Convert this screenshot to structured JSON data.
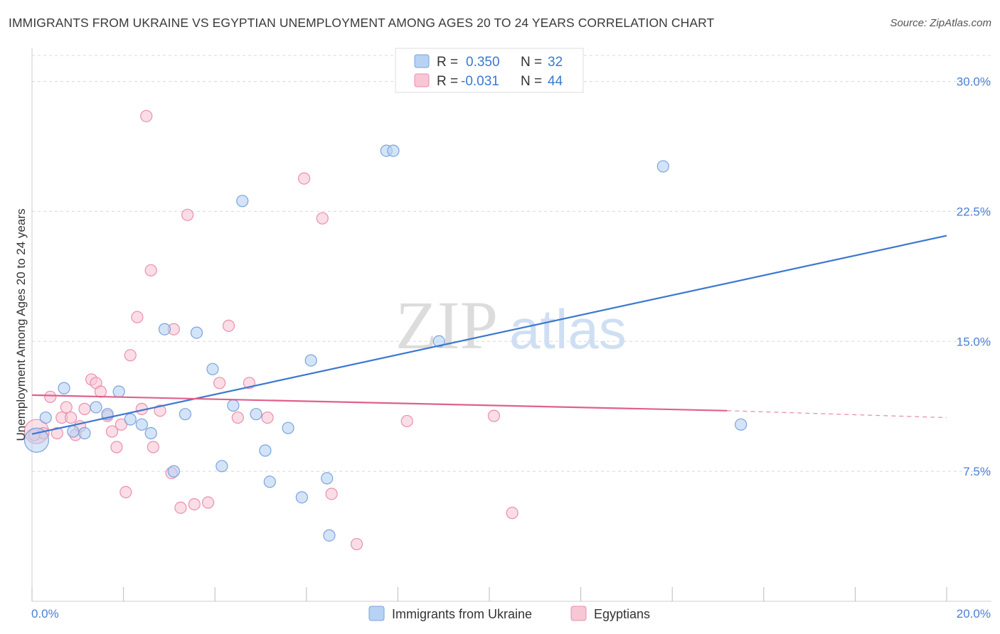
{
  "header": {
    "title": "IMMIGRANTS FROM UKRAINE VS EGYPTIAN UNEMPLOYMENT AMONG AGES 20 TO 24 YEARS CORRELATION CHART",
    "source": "Source: ZipAtlas.com"
  },
  "watermark": {
    "zip": "ZIP",
    "atlas": "atlas"
  },
  "legend_top": {
    "rows": [
      {
        "r_label": "R =",
        "r_value": "0.350",
        "n_label": "N =",
        "n_value": "32"
      },
      {
        "r_label": "R =",
        "r_value": "-0.031",
        "n_label": "N =",
        "n_value": "44"
      }
    ]
  },
  "legend_bottom": {
    "items": [
      {
        "label": "Immigrants from Ukraine"
      },
      {
        "label": "Egyptians"
      }
    ]
  },
  "colors": {
    "blue_fill": "#b8d2f3",
    "blue_stroke": "#7aa3dd",
    "blue_line": "#3b78d0",
    "pink_fill": "#f8c7d6",
    "pink_stroke": "#e98fab",
    "pink_line": "#e0608c",
    "grid": "#d8d8d8",
    "tick_label": "#4a7fd4"
  },
  "chart_data": {
    "type": "scatter",
    "ylabel": "Unemployment Among Ages 20 to 24 years",
    "xlim": [
      0,
      20
    ],
    "ylim": [
      0,
      31.5
    ],
    "x_tick_labels": [
      "0.0%",
      "20.0%"
    ],
    "y_ticks": [
      {
        "value": 7.5,
        "label": "7.5%"
      },
      {
        "value": 15.0,
        "label": "15.0%"
      },
      {
        "value": 22.5,
        "label": "22.5%"
      },
      {
        "value": 30.0,
        "label": "30.0%"
      }
    ],
    "grid": true,
    "series": [
      {
        "name": "Immigrants from Ukraine",
        "color": "blue",
        "points": [
          [
            0.1,
            9.3
          ],
          [
            0.3,
            10.6
          ],
          [
            0.7,
            12.3
          ],
          [
            0.9,
            9.8
          ],
          [
            1.15,
            9.7
          ],
          [
            1.4,
            11.2
          ],
          [
            1.65,
            10.8
          ],
          [
            1.9,
            12.1
          ],
          [
            2.15,
            10.5
          ],
          [
            2.4,
            10.2
          ],
          [
            2.6,
            9.7
          ],
          [
            2.9,
            15.7
          ],
          [
            3.1,
            7.5
          ],
          [
            3.35,
            10.8
          ],
          [
            3.6,
            15.5
          ],
          [
            3.95,
            13.4
          ],
          [
            4.15,
            7.8
          ],
          [
            4.4,
            11.3
          ],
          [
            4.6,
            23.1
          ],
          [
            4.9,
            10.8
          ],
          [
            5.1,
            8.7
          ],
          [
            5.2,
            6.9
          ],
          [
            5.6,
            10.0
          ],
          [
            5.9,
            6.0
          ],
          [
            6.1,
            13.9
          ],
          [
            6.45,
            7.1
          ],
          [
            6.5,
            3.8
          ],
          [
            7.75,
            26.0
          ],
          [
            7.9,
            26.0
          ],
          [
            8.9,
            15.0
          ],
          [
            13.8,
            25.1
          ],
          [
            15.5,
            10.2
          ]
        ],
        "trend": {
          "x": [
            0.0,
            20.0
          ],
          "y": [
            9.65,
            21.1
          ]
        }
      },
      {
        "name": "Egyptians",
        "color": "pink",
        "points": [
          [
            0.1,
            9.8
          ],
          [
            0.25,
            9.7
          ],
          [
            0.4,
            11.8
          ],
          [
            0.55,
            9.7
          ],
          [
            0.65,
            10.6
          ],
          [
            0.75,
            11.2
          ],
          [
            0.85,
            10.6
          ],
          [
            0.95,
            9.6
          ],
          [
            1.05,
            10.1
          ],
          [
            1.15,
            11.1
          ],
          [
            1.3,
            12.8
          ],
          [
            1.4,
            12.6
          ],
          [
            1.5,
            12.1
          ],
          [
            1.65,
            10.7
          ],
          [
            1.75,
            9.8
          ],
          [
            1.85,
            8.9
          ],
          [
            1.95,
            10.2
          ],
          [
            2.05,
            6.3
          ],
          [
            2.15,
            14.2
          ],
          [
            2.3,
            16.4
          ],
          [
            2.4,
            11.1
          ],
          [
            2.5,
            28.0
          ],
          [
            2.6,
            19.1
          ],
          [
            2.65,
            8.9
          ],
          [
            2.8,
            11.0
          ],
          [
            3.05,
            7.4
          ],
          [
            3.1,
            15.7
          ],
          [
            3.25,
            5.4
          ],
          [
            3.4,
            22.3
          ],
          [
            3.55,
            5.6
          ],
          [
            3.85,
            5.7
          ],
          [
            4.1,
            12.6
          ],
          [
            4.3,
            15.9
          ],
          [
            4.5,
            10.6
          ],
          [
            4.75,
            12.6
          ],
          [
            5.15,
            10.6
          ],
          [
            5.95,
            24.4
          ],
          [
            6.35,
            22.1
          ],
          [
            6.55,
            6.2
          ],
          [
            7.1,
            3.3
          ],
          [
            8.2,
            10.4
          ],
          [
            10.1,
            10.7
          ],
          [
            10.5,
            5.1
          ],
          [
            0.05,
            9.6
          ]
        ],
        "trend": {
          "x": [
            0.0,
            15.2
          ],
          "y": [
            11.9,
            11.0
          ]
        },
        "trend_dashed": {
          "x": [
            15.2,
            20.0
          ],
          "y": [
            11.0,
            10.6
          ]
        }
      }
    ]
  }
}
